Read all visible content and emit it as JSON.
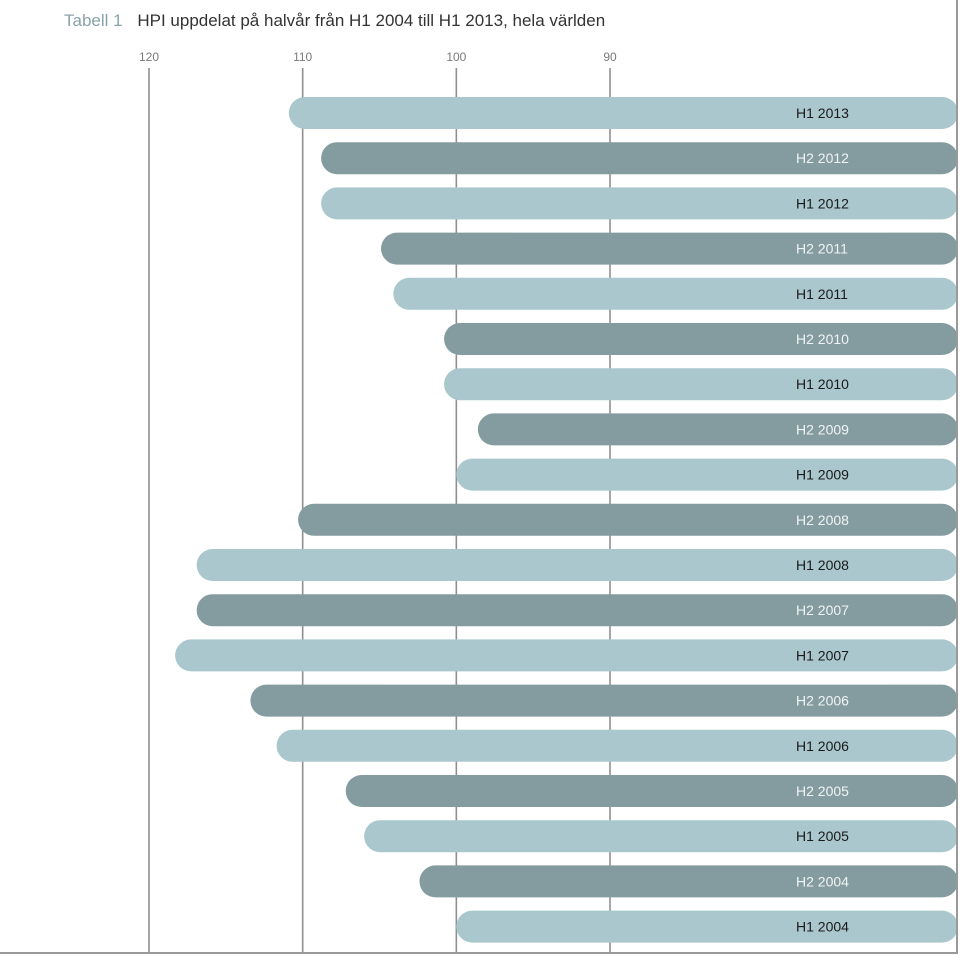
{
  "header": {
    "table_label": "Tabell 1",
    "title": "HPI uppdelat på halvår från H1 2004 till H1 2013, hela världen"
  },
  "colors": {
    "light_bar": "#a9c7cd",
    "dark_bar": "#849ca0",
    "label_on_light": "#1a1a1a",
    "label_on_dark": "#f0f4f4",
    "grid": "#8f8f8f"
  },
  "chart_data": {
    "type": "bar",
    "orientation": "horizontal",
    "title": "HPI uppdelat på halvår från H1 2004 till H1 2013, hela världen",
    "x_axis": {
      "reversed": true,
      "ticks": [
        120,
        110,
        100,
        90
      ]
    },
    "categories": [
      "H1 2013",
      "H2 2012",
      "H1 2012",
      "H2 2011",
      "H1 2011",
      "H2 2010",
      "H1 2010",
      "H2 2009",
      "H1 2009",
      "H2 2008",
      "H1 2008",
      "H2 2007",
      "H1 2007",
      "H2 2006",
      "H1 2006",
      "H2 2005",
      "H1 2005",
      "H2 2004",
      "H1 2004"
    ],
    "values": [
      110.9,
      108.8,
      108.8,
      104.9,
      104.1,
      100.8,
      100.8,
      98.6,
      100.0,
      110.3,
      116.9,
      116.9,
      118.3,
      113.4,
      111.7,
      107.2,
      106.0,
      102.4,
      100.0
    ],
    "shades": [
      "light",
      "dark",
      "light",
      "dark",
      "light",
      "dark",
      "light",
      "dark",
      "light",
      "dark",
      "light",
      "dark",
      "light",
      "dark",
      "light",
      "dark",
      "light",
      "dark",
      "light"
    ]
  }
}
